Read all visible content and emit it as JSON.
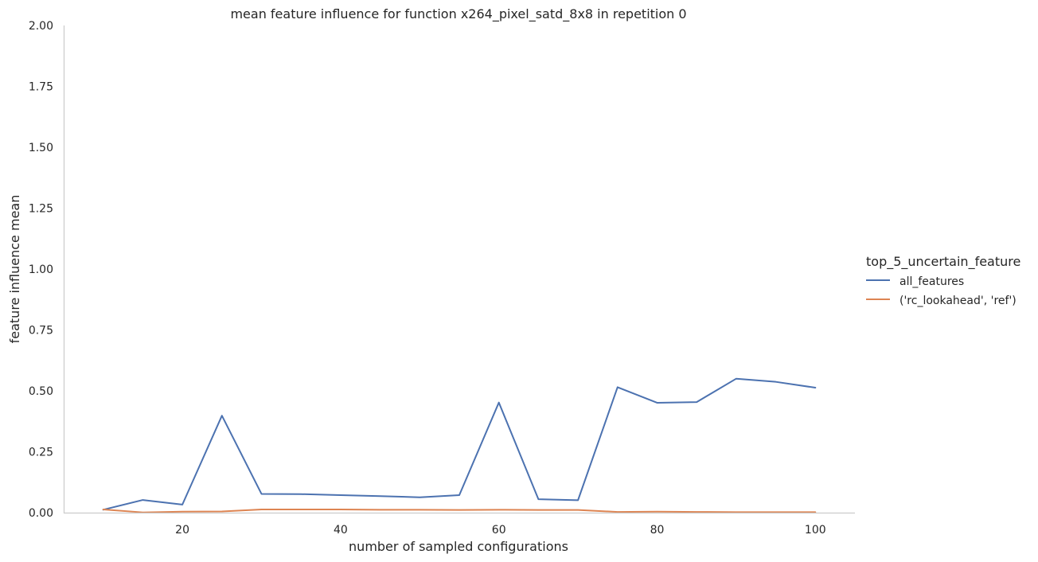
{
  "chart_data": {
    "type": "line",
    "title": "mean feature influence for function x264_pixel_satd_8x8 in repetition 0",
    "xlabel": "number of sampled configurations",
    "ylabel": "feature influence mean",
    "xlim": [
      5,
      105
    ],
    "ylim": [
      0,
      2
    ],
    "xticks": [
      20,
      40,
      60,
      80,
      100
    ],
    "yticks": [
      0,
      0.25,
      0.5,
      0.75,
      1.0,
      1.25,
      1.5,
      1.75,
      2.0
    ],
    "ytick_labels": [
      "0.00",
      "0.25",
      "0.50",
      "0.75",
      "1.00",
      "1.25",
      "1.50",
      "1.75",
      "2.00"
    ],
    "grid": false,
    "legend": {
      "title": "top_5_uncertain_feature",
      "placement": "right"
    },
    "x": [
      10,
      15,
      20,
      25,
      30,
      35,
      40,
      45,
      50,
      55,
      60,
      65,
      70,
      75,
      80,
      85,
      90,
      95,
      100
    ],
    "series": [
      {
        "name": "all_features",
        "color": "#4c72b0",
        "values": [
          0.012,
          0.052,
          0.033,
          0.398,
          0.077,
          0.076,
          0.072,
          0.068,
          0.063,
          0.072,
          0.452,
          0.055,
          0.051,
          0.515,
          0.451,
          0.454,
          0.55,
          0.537,
          0.513
        ]
      },
      {
        "name": "('rc_lookahead', 'ref')",
        "color": "#dd8452",
        "values": [
          0.013,
          0.001,
          0.004,
          0.005,
          0.013,
          0.013,
          0.013,
          0.012,
          0.012,
          0.011,
          0.012,
          0.011,
          0.011,
          0.003,
          0.004,
          0.003,
          0.002,
          0.002,
          0.002
        ]
      }
    ]
  }
}
